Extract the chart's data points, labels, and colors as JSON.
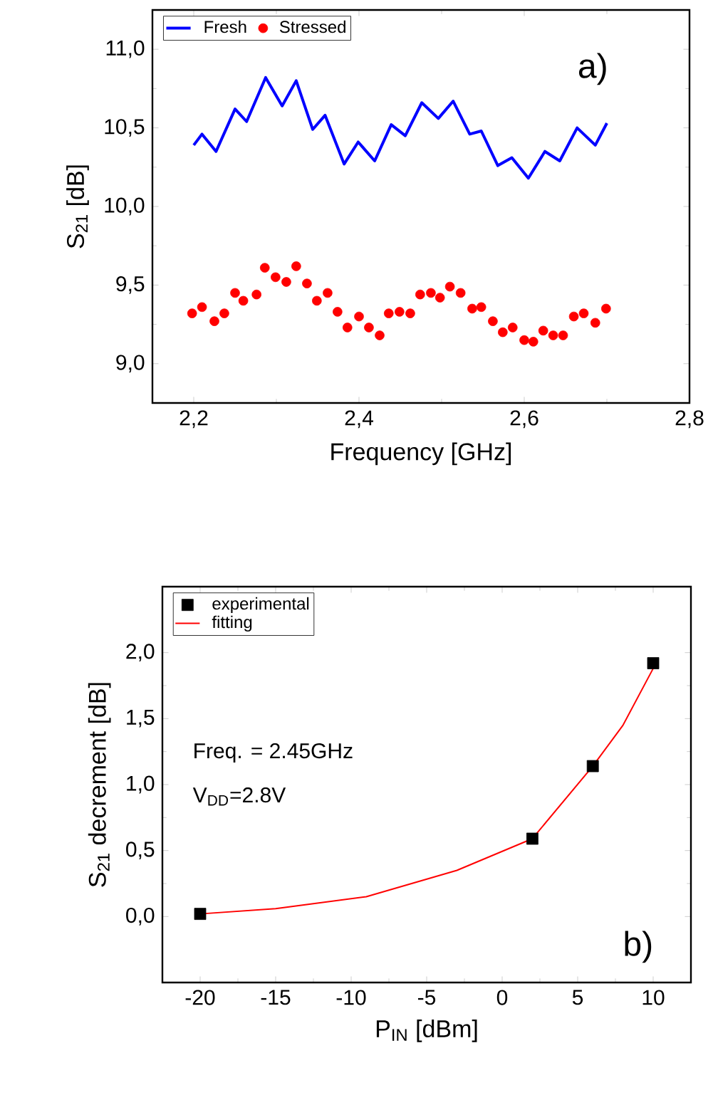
{
  "chart_data": [
    {
      "type": "line",
      "xlabel": "Frequency [GHz]",
      "ylabel": "S$_{21}$ [dB]",
      "xlim": [
        2.15,
        2.8
      ],
      "ylim": [
        8.75,
        11.25
      ],
      "xticks": [
        {
          "value": 2.2,
          "label": "2,2"
        },
        {
          "value": 2.4,
          "label": "2,4"
        },
        {
          "value": 2.6,
          "label": "2,6"
        },
        {
          "value": 2.8,
          "label": "2,8"
        }
      ],
      "yticks": [
        {
          "value": 9.0,
          "label": "9,0"
        },
        {
          "value": 9.5,
          "label": "9,5"
        },
        {
          "value": 10.0,
          "label": "10,0"
        },
        {
          "value": 10.5,
          "label": "10,5"
        },
        {
          "value": 11.0,
          "label": "11,0"
        }
      ],
      "legend": "top",
      "annotations": [
        "a)"
      ],
      "series": [
        {
          "name": "Fresh",
          "color": "#0000ff",
          "marker": "none",
          "x": [
            2.2,
            2.21,
            2.227,
            2.25,
            2.264,
            2.287,
            2.307,
            2.324,
            2.344,
            2.359,
            2.382,
            2.399,
            2.419,
            2.439,
            2.456,
            2.476,
            2.496,
            2.514,
            2.534,
            2.548,
            2.568,
            2.585,
            2.605,
            2.625,
            2.643,
            2.664,
            2.686,
            2.7
          ],
          "values": [
            10.39,
            10.46,
            10.35,
            10.62,
            10.54,
            10.82,
            10.64,
            10.8,
            10.49,
            10.58,
            10.27,
            10.41,
            10.29,
            10.52,
            10.45,
            10.66,
            10.56,
            10.67,
            10.46,
            10.48,
            10.26,
            10.31,
            10.18,
            10.35,
            10.29,
            10.5,
            10.39,
            10.53
          ]
        },
        {
          "name": "Stressed",
          "type": "scatter",
          "color": "#ff0000",
          "marker": "circle",
          "x": [
            2.198,
            2.21,
            2.225,
            2.237,
            2.25,
            2.26,
            2.276,
            2.286,
            2.299,
            2.312,
            2.324,
            2.337,
            2.349,
            2.362,
            2.374,
            2.386,
            2.4,
            2.412,
            2.425,
            2.436,
            2.449,
            2.462,
            2.474,
            2.487,
            2.498,
            2.51,
            2.523,
            2.537,
            2.548,
            2.562,
            2.574,
            2.586,
            2.6,
            2.611,
            2.623,
            2.635,
            2.647,
            2.66,
            2.672,
            2.686,
            2.699
          ],
          "values": [
            9.32,
            9.36,
            9.27,
            9.32,
            9.45,
            9.4,
            9.44,
            9.61,
            9.55,
            9.52,
            9.62,
            9.51,
            9.4,
            9.45,
            9.33,
            9.23,
            9.3,
            9.23,
            9.18,
            9.32,
            9.33,
            9.32,
            9.44,
            9.45,
            9.42,
            9.49,
            9.45,
            9.35,
            9.36,
            9.27,
            9.2,
            9.23,
            9.15,
            9.14,
            9.21,
            9.18,
            9.18,
            9.3,
            9.32,
            9.26,
            9.35
          ]
        }
      ]
    },
    {
      "type": "line",
      "xlabel": "P$_{IN}$ [dBm]",
      "ylabel": "S$_{21}$ decrement [dB]",
      "xlim": [
        -22.5,
        12.5
      ],
      "ylim": [
        -0.5,
        2.5
      ],
      "xticks": [
        -20,
        -15,
        -10,
        -5,
        0,
        5,
        10
      ],
      "yticks": [
        {
          "value": 0.0,
          "label": "0,0"
        },
        {
          "value": 0.5,
          "label": "0,5"
        },
        {
          "value": 1.0,
          "label": "1,0"
        },
        {
          "value": 1.5,
          "label": "1,5"
        },
        {
          "value": 2.0,
          "label": "2,0"
        }
      ],
      "legend": "top left",
      "annotations": [
        "Freq. = 2.45GHz",
        "V$_{DD}$=2.8V",
        "b)"
      ],
      "series": [
        {
          "name": "experimental",
          "type": "scatter",
          "color": "#000000",
          "marker": "square",
          "x": [
            -20,
            2,
            6,
            10
          ],
          "values": [
            0.02,
            0.59,
            1.14,
            1.92
          ]
        },
        {
          "name": "fitting",
          "color": "#ff0000",
          "marker": "none",
          "x": [
            -20,
            -15,
            -9,
            -3,
            2,
            6,
            8,
            10
          ],
          "values": [
            0.02,
            0.06,
            0.15,
            0.35,
            0.59,
            1.14,
            1.45,
            1.88
          ]
        }
      ]
    }
  ]
}
